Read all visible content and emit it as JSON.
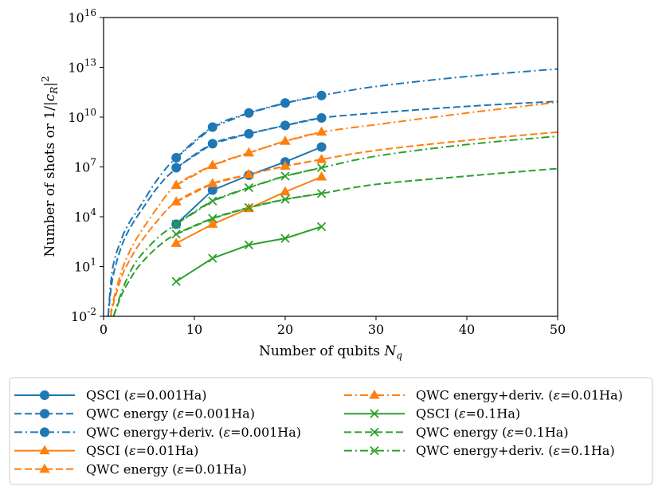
{
  "chart_data": {
    "type": "line",
    "title": "",
    "xlabel": "Number of qubits N_q",
    "ylabel": "Number of shots or 1/|c_R|^2",
    "xlim": [
      0,
      50
    ],
    "ylim_log10": [
      -2,
      16
    ],
    "xscale": "linear",
    "yscale": "log",
    "x_ticks": [
      0,
      10,
      20,
      30,
      40,
      50
    ],
    "y_tick_exponents": [
      -2,
      1,
      4,
      7,
      10,
      13,
      16
    ],
    "legend_position": "below",
    "series": [
      {
        "name": "QSCI (ε=0.001Ha)",
        "color": "#1f77b4",
        "dash": "solid",
        "marker": "circle",
        "x": [
          8,
          12,
          16,
          20,
          24
        ],
        "log10_y": [
          3.55,
          5.6,
          6.5,
          7.3,
          8.2
        ]
      },
      {
        "name": "QWC energy (ε=0.001Ha)",
        "color": "#1f77b4",
        "dash": "dashed",
        "marker": "circle",
        "x": [
          8,
          12,
          16,
          20,
          24
        ],
        "log10_y": [
          6.95,
          8.4,
          9.0,
          9.5,
          9.95
        ]
      },
      {
        "name": "QWC energy+deriv. (ε=0.001Ha)",
        "color": "#1f77b4",
        "dash": "dashdot",
        "marker": "circle",
        "x": [
          8,
          12,
          16,
          20,
          24
        ],
        "log10_y": [
          7.55,
          9.4,
          10.25,
          10.85,
          11.3
        ]
      },
      {
        "name": "QSCI (ε=0.01Ha)",
        "color": "#ff7f0e",
        "dash": "solid",
        "marker": "triangle",
        "x": [
          8,
          12,
          16,
          20,
          24
        ],
        "log10_y": [
          2.4,
          3.55,
          4.5,
          5.5,
          6.4
        ]
      },
      {
        "name": "QWC energy (ε=0.01Ha)",
        "color": "#ff7f0e",
        "dash": "dashed",
        "marker": "triangle",
        "x": [
          8,
          12,
          16,
          20,
          24
        ],
        "log10_y": [
          4.9,
          6.0,
          6.55,
          7.05,
          7.45
        ]
      },
      {
        "name": "QWC energy+deriv. (ε=0.01Ha)",
        "color": "#ff7f0e",
        "dash": "dashdot",
        "marker": "triangle",
        "x": [
          8,
          12,
          16,
          20,
          24
        ],
        "log10_y": [
          5.9,
          7.1,
          7.85,
          8.55,
          9.1
        ]
      },
      {
        "name": "QSCI (ε=0.1Ha)",
        "color": "#2ca02c",
        "dash": "solid",
        "marker": "x",
        "x": [
          8,
          12,
          16,
          20,
          24
        ],
        "log10_y": [
          0.1,
          1.5,
          2.3,
          2.7,
          3.4
        ]
      },
      {
        "name": "QWC energy (ε=0.1Ha)",
        "color": "#2ca02c",
        "dash": "dashed",
        "marker": "x",
        "x": [
          8,
          12,
          16,
          20,
          24
        ],
        "log10_y": [
          2.95,
          3.9,
          4.55,
          5.05,
          5.4
        ]
      },
      {
        "name": "QWC energy+deriv. (ε=0.1Ha)",
        "color": "#2ca02c",
        "dash": "dashdot",
        "marker": "x",
        "x": [
          8,
          12,
          16,
          20,
          24
        ],
        "log10_y": [
          3.55,
          4.95,
          5.75,
          6.45,
          6.95
        ]
      }
    ],
    "fit_curves": [
      {
        "series": "QWC energy (ε=0.001Ha)",
        "color": "#1f77b4",
        "dash": "dashed",
        "x": [
          0.5,
          1,
          2,
          3,
          4,
          6,
          8,
          12,
          16,
          20,
          24,
          30,
          40,
          50
        ],
        "log10_y": [
          -2,
          0.3,
          2.25,
          3.4,
          4.25,
          5.8,
          6.9,
          8.4,
          9.0,
          9.5,
          9.95,
          10.25,
          10.65,
          10.95
        ]
      },
      {
        "series": "QWC energy+deriv. (ε=0.001Ha)",
        "color": "#1f77b4",
        "dash": "dashdot",
        "x": [
          0.5,
          1,
          2,
          3,
          4,
          6,
          8,
          12,
          16,
          20,
          24,
          30,
          40,
          50
        ],
        "log10_y": [
          -2,
          0.9,
          2.7,
          3.8,
          4.6,
          6.3,
          7.55,
          9.4,
          10.25,
          10.85,
          11.3,
          11.85,
          12.45,
          12.9
        ]
      },
      {
        "series": "QWC energy (ε=0.01Ha)",
        "color": "#ff7f0e",
        "dash": "dashed",
        "x": [
          0.8,
          1,
          2,
          3,
          4,
          6,
          8,
          12,
          16,
          20,
          24,
          30,
          40,
          50
        ],
        "log10_y": [
          -2,
          -1.4,
          0.4,
          1.5,
          2.4,
          3.8,
          4.9,
          6.0,
          6.55,
          7.05,
          7.45,
          8.0,
          8.6,
          9.1
        ]
      },
      {
        "series": "QWC energy+deriv. (ε=0.01Ha)",
        "color": "#ff7f0e",
        "dash": "dashdot",
        "x": [
          0.8,
          1,
          2,
          3,
          4,
          6,
          8,
          12,
          16,
          20,
          24,
          30,
          40,
          50
        ],
        "log10_y": [
          -2,
          -1.2,
          0.75,
          2.05,
          3.0,
          4.6,
          5.9,
          7.1,
          7.85,
          8.55,
          9.1,
          9.55,
          10.25,
          10.9
        ]
      },
      {
        "series": "QWC energy (ε=0.1Ha)",
        "color": "#2ca02c",
        "dash": "dashed",
        "x": [
          1.1,
          2,
          3,
          4,
          6,
          8,
          12,
          16,
          20,
          24,
          30,
          40,
          50
        ],
        "log10_y": [
          -2,
          -0.7,
          0.3,
          1.1,
          2.2,
          2.95,
          3.9,
          4.55,
          5.05,
          5.4,
          5.95,
          6.45,
          6.9
        ]
      },
      {
        "series": "QWC energy+deriv. (ε=0.1Ha)",
        "color": "#2ca02c",
        "dash": "dashdot",
        "x": [
          1.1,
          2,
          3,
          4,
          6,
          8,
          12,
          16,
          20,
          24,
          30,
          40,
          50
        ],
        "log10_y": [
          -2,
          -0.5,
          0.75,
          1.6,
          2.75,
          3.55,
          4.95,
          5.75,
          6.45,
          6.95,
          7.65,
          8.35,
          8.85
        ]
      }
    ]
  },
  "legend": {
    "left": [
      {
        "method": "QSCI",
        "eps": "0.001Ha",
        "series": 0
      },
      {
        "method": "QWC energy",
        "eps": "0.001Ha",
        "series": 1
      },
      {
        "method": "QWC energy+deriv.",
        "eps": "0.001Ha",
        "series": 2
      },
      {
        "method": "QSCI",
        "eps": "0.01Ha",
        "series": 3
      },
      {
        "method": "QWC energy",
        "eps": "0.01Ha",
        "series": 4
      }
    ],
    "right": [
      {
        "method": "QWC energy+deriv.",
        "eps": "0.01Ha",
        "series": 5
      },
      {
        "method": "QSCI",
        "eps": "0.1Ha",
        "series": 6
      },
      {
        "method": "QWC energy",
        "eps": "0.1Ha",
        "series": 7
      },
      {
        "method": "QWC energy+deriv.",
        "eps": "0.1Ha",
        "series": 8
      }
    ]
  },
  "colors": {
    "blue": "#1f77b4",
    "orange": "#ff7f0e",
    "green": "#2ca02c"
  }
}
